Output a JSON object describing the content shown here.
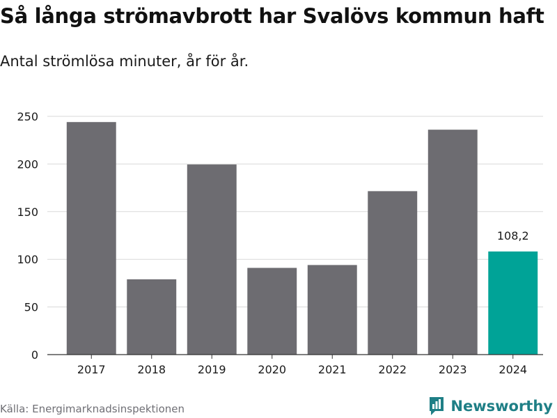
{
  "header": {
    "title": "Så långa strömavbrott har Svalövs kommun haft",
    "subtitle": "Antal strömlösa minuter, år för år."
  },
  "footer": {
    "source": "Källa: Energimarknadsinspektionen",
    "brand": "Newsworthy"
  },
  "colors": {
    "bar": "#6d6c71",
    "highlight": "#00a397",
    "grid": "#d9d9d9",
    "brand": "#1f7f86"
  },
  "chart_data": {
    "type": "bar",
    "categories": [
      "2017",
      "2018",
      "2019",
      "2020",
      "2021",
      "2022",
      "2023",
      "2024"
    ],
    "values": [
      244,
      79,
      199.5,
      91,
      94,
      171.5,
      236,
      108.2
    ],
    "highlight_index": 7,
    "data_labels": [
      {
        "index": 7,
        "text": "108,2"
      }
    ],
    "title": "Så långa strömavbrott har Svalövs kommun haft",
    "subtitle": "Antal strömlösa minuter, år för år.",
    "xlabel": "",
    "ylabel": "",
    "ylim": [
      0,
      250
    ],
    "yticks": [
      0,
      50,
      100,
      150,
      200,
      250
    ],
    "ytick_labels": [
      "0",
      "50",
      "100",
      "150",
      "200",
      "250"
    ],
    "grid": true,
    "legend": "none"
  }
}
